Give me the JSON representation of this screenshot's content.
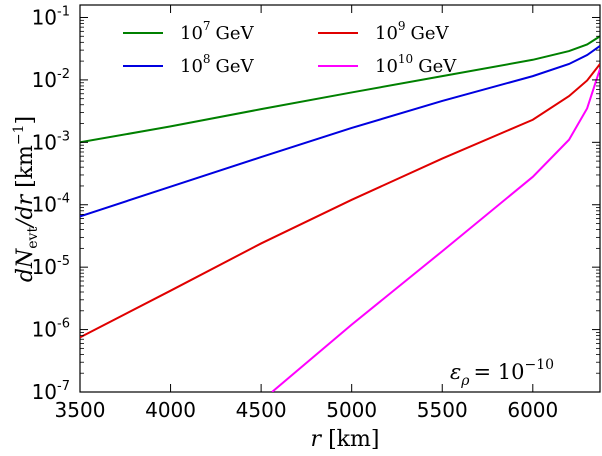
{
  "chart_data": {
    "type": "line",
    "title": "",
    "xlabel": "r [km]",
    "ylabel": "dN_evt/dr [km^-1]",
    "xlim": [
      3500,
      6371
    ],
    "ylim_log10": [
      -7,
      -0.8
    ],
    "yscale": "log",
    "grid": false,
    "legend_placement": "top, two columns",
    "x_ticks": [
      3500,
      4000,
      4500,
      5000,
      5500,
      6000
    ],
    "y_ticks": [
      {
        "base": "10",
        "exp": "-7"
      },
      {
        "base": "10",
        "exp": "-6"
      },
      {
        "base": "10",
        "exp": "-5"
      },
      {
        "base": "10",
        "exp": "-4"
      },
      {
        "base": "10",
        "exp": "-3"
      },
      {
        "base": "10",
        "exp": "-2"
      },
      {
        "base": "10",
        "exp": "-1"
      }
    ],
    "annotation": {
      "lhs": "ε",
      "sub": "ρ",
      "rhs": "= 10",
      "exp": "−10"
    },
    "series": [
      {
        "name": "10^7 GeV",
        "label_base": "10",
        "label_exp": "7",
        "label_unit": "GeV",
        "color": "#008000",
        "x": [
          3500,
          4000,
          4500,
          5000,
          5500,
          6000,
          6200,
          6300,
          6371
        ],
        "y": [
          0.001,
          0.0018,
          0.0034,
          0.0063,
          0.0115,
          0.021,
          0.029,
          0.037,
          0.05
        ]
      },
      {
        "name": "10^8 GeV",
        "label_base": "10",
        "label_exp": "8",
        "label_unit": "GeV",
        "color": "#0000e0",
        "x": [
          3500,
          4000,
          4500,
          5000,
          5500,
          6000,
          6200,
          6300,
          6371
        ],
        "y": [
          6.5e-05,
          0.000195,
          0.00058,
          0.0017,
          0.0046,
          0.0115,
          0.018,
          0.025,
          0.035
        ]
      },
      {
        "name": "10^9 GeV",
        "label_base": "10",
        "label_exp": "9",
        "label_unit": "GeV",
        "color": "#e00000",
        "x": [
          3500,
          4000,
          4500,
          5000,
          5500,
          6000,
          6200,
          6300,
          6371
        ],
        "y": [
          7.5e-07,
          4.2e-06,
          2.4e-05,
          0.00012,
          0.00055,
          0.0023,
          0.0055,
          0.0098,
          0.018
        ]
      },
      {
        "name": "10^10 GeV",
        "label_base": "10",
        "label_exp": "10",
        "label_unit": "GeV",
        "color": "#ff00ff",
        "x": [
          4560,
          5000,
          5500,
          6000,
          6200,
          6300,
          6371
        ],
        "y": [
          1e-07,
          1.2e-06,
          1.8e-05,
          0.00028,
          0.0011,
          0.0035,
          0.015
        ]
      }
    ]
  }
}
